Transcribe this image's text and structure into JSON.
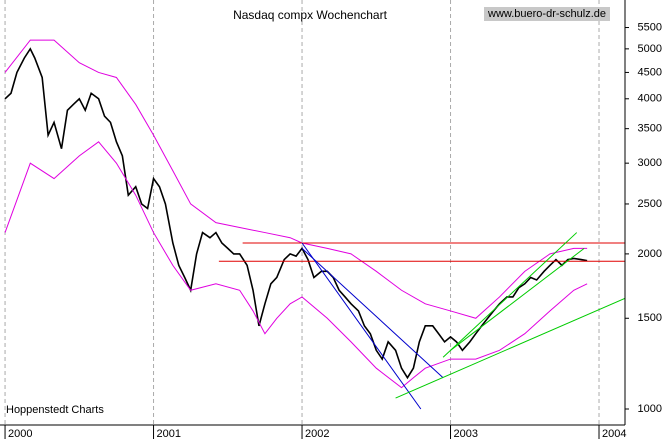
{
  "chart_data": {
    "type": "line",
    "title": "Nasdaq compx Wochenchart",
    "source": "www.buero-dr-schulz.de",
    "footer": "Hoppenstedt Charts",
    "log_y": true,
    "grid_x": true,
    "xlim": [
      1999.966,
      2004.175
    ],
    "xticks": [
      2000,
      2001,
      2002,
      2003,
      2004
    ],
    "ylim": [
      931,
      6220
    ],
    "yticks": [
      1000,
      1500,
      2000,
      2500,
      3000,
      3500,
      4000,
      4500,
      5000,
      5500
    ],
    "series": [
      {
        "color": "#000000",
        "width": 1.6,
        "x": [
          2000.0,
          2000.04,
          2000.08,
          2000.13,
          2000.17,
          2000.2,
          2000.25,
          2000.29,
          2000.33,
          2000.38,
          2000.42,
          2000.46,
          2000.5,
          2000.54,
          2000.58,
          2000.63,
          2000.67,
          2000.71,
          2000.75,
          2000.79,
          2000.83,
          2000.88,
          2000.92,
          2000.96,
          2001.0,
          2001.04,
          2001.08,
          2001.13,
          2001.17,
          2001.21,
          2001.25,
          2001.29,
          2001.33,
          2001.38,
          2001.42,
          2001.46,
          2001.5,
          2001.54,
          2001.58,
          2001.63,
          2001.67,
          2001.71,
          2001.75,
          2001.79,
          2001.83,
          2001.88,
          2001.92,
          2001.96,
          2002.0,
          2002.04,
          2002.08,
          2002.13,
          2002.17,
          2002.21,
          2002.25,
          2002.29,
          2002.33,
          2002.38,
          2002.42,
          2002.46,
          2002.5,
          2002.54,
          2002.58,
          2002.63,
          2002.67,
          2002.71,
          2002.75,
          2002.79,
          2002.83,
          2002.88,
          2002.92,
          2002.96,
          2003.0,
          2003.04,
          2003.08,
          2003.13,
          2003.17,
          2003.21,
          2003.25,
          2003.29,
          2003.33,
          2003.38,
          2003.42,
          2003.46,
          2003.5,
          2003.54,
          2003.58,
          2003.63,
          2003.67,
          2003.71,
          2003.75,
          2003.79,
          2003.83,
          2003.88,
          2003.92
        ],
        "values": [
          4000,
          4100,
          4500,
          4800,
          5000,
          4800,
          4400,
          3400,
          3600,
          3200,
          3800,
          3900,
          4000,
          3800,
          4100,
          4000,
          3700,
          3600,
          3300,
          3100,
          2600,
          2700,
          2500,
          2450,
          2800,
          2700,
          2500,
          2100,
          1900,
          1800,
          1700,
          2000,
          2200,
          2150,
          2200,
          2100,
          2050,
          2000,
          2000,
          1900,
          1700,
          1450,
          1600,
          1750,
          1800,
          1950,
          2000,
          1980,
          2050,
          1950,
          1800,
          1850,
          1850,
          1800,
          1700,
          1650,
          1600,
          1550,
          1450,
          1400,
          1300,
          1250,
          1350,
          1300,
          1200,
          1150,
          1200,
          1350,
          1450,
          1450,
          1400,
          1350,
          1380,
          1350,
          1300,
          1350,
          1400,
          1450,
          1500,
          1550,
          1600,
          1650,
          1650,
          1720,
          1750,
          1800,
          1780,
          1850,
          1900,
          1950,
          1900,
          1950,
          1960,
          1950,
          1940
        ]
      },
      {
        "color": "#e000e0",
        "width": 1,
        "x": [
          2000.0,
          2000.17,
          2000.33,
          2000.5,
          2000.63,
          2000.75,
          2000.88,
          2001.0,
          2001.13,
          2001.25,
          2001.42,
          2001.58,
          2001.75,
          2001.92,
          2002.0,
          2002.17,
          2002.33,
          2002.5,
          2002.67,
          2002.83,
          2003.0,
          2003.17,
          2003.33,
          2003.5,
          2003.67,
          2003.83,
          2003.92
        ],
        "values": [
          4500,
          5200,
          5200,
          4700,
          4500,
          4400,
          3900,
          3400,
          2900,
          2500,
          2300,
          2250,
          2200,
          2150,
          2100,
          2050,
          2000,
          1850,
          1700,
          1600,
          1550,
          1500,
          1650,
          1850,
          2000,
          2050,
          2050
        ]
      },
      {
        "color": "#e000e0",
        "width": 1,
        "x": [
          2000.0,
          2000.17,
          2000.33,
          2000.5,
          2000.63,
          2000.75,
          2000.88,
          2001.0,
          2001.13,
          2001.25,
          2001.42,
          2001.58,
          2001.67,
          2001.75,
          2001.83,
          2001.92,
          2002.0,
          2002.17,
          2002.33,
          2002.5,
          2002.67,
          2002.75,
          2002.83,
          2003.0,
          2003.17,
          2003.33,
          2003.5,
          2003.67,
          2003.83,
          2003.92
        ],
        "values": [
          2200,
          3000,
          2800,
          3100,
          3300,
          3000,
          2600,
          2200,
          1900,
          1700,
          1750,
          1700,
          1550,
          1400,
          1500,
          1600,
          1650,
          1500,
          1350,
          1200,
          1100,
          1150,
          1200,
          1250,
          1250,
          1300,
          1400,
          1550,
          1700,
          1750
        ]
      },
      {
        "color": "#e00000",
        "width": 1,
        "x": [
          2001.6,
          2004.175
        ],
        "values": [
          2100,
          2100
        ]
      },
      {
        "color": "#e00000",
        "width": 1,
        "x": [
          2001.44,
          2004.175
        ],
        "values": [
          1935,
          1935
        ]
      },
      {
        "color": "#0000cc",
        "width": 1,
        "x": [
          2002.0,
          2002.8
        ],
        "values": [
          2100,
          1000
        ]
      },
      {
        "color": "#0000cc",
        "width": 1,
        "x": [
          2002.0,
          2002.95
        ],
        "values": [
          2050,
          1150
        ]
      },
      {
        "color": "#00cc00",
        "width": 1,
        "x": [
          2002.63,
          2004.175
        ],
        "values": [
          1050,
          1640
        ]
      },
      {
        "color": "#00cc00",
        "width": 1,
        "x": [
          2002.95,
          2003.85
        ],
        "values": [
          1260,
          2200
        ]
      },
      {
        "color": "#00cc00",
        "width": 1,
        "x": [
          2003.0,
          2003.9
        ],
        "values": [
          1300,
          2050
        ]
      }
    ]
  }
}
